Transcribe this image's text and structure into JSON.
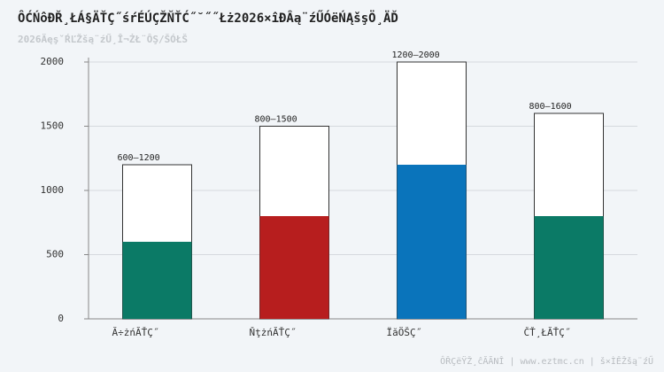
{
  "chart_data": {
    "type": "range-bar",
    "title": "ÔĆŃôĐŘ¸ŁÁ§ÄŤÇ˝śŕÉÚÇŽŇŤĆ˝˘˝˝Łż2026×îĐÂą¨źŰÓëŃĄšşÖ¸ÄĎ",
    "subtitle": "2026ÄęşˇŔĽŽšą¨źŰ¸Î¬ŻŁ¨ÔŞ/ŠÓŁŠ",
    "footer": "ÔŘÇëŸŽ¸ĉĂÃNÎ | www.eztmc.cn | š×ÌĚŽšą¨źŰ",
    "categories": [
      "Ă÷żńĂŤÇ˝",
      "ŇţżńĂŤÇ˝",
      "ÏăÖŠÇ˝",
      "ČŤ¸ŁĂŤÇ˝"
    ],
    "series": [
      {
        "values": [
          600,
          800,
          1200,
          800
        ],
        "colors": [
          "#0b7a66",
          "#b71e1e",
          "#0a74bb",
          "#0b7a66"
        ]
      },
      {
        "values": [
          1200,
          1500,
          2000,
          1600
        ],
        "color": "#ffffff"
      }
    ],
    "range_labels": [
      "600–1200",
      "800–1500",
      "1200–2000",
      "800–1600"
    ],
    "ylim": [
      0,
      2000
    ],
    "yticks": [
      0,
      500,
      1000,
      1500,
      2000
    ],
    "grid": true
  }
}
